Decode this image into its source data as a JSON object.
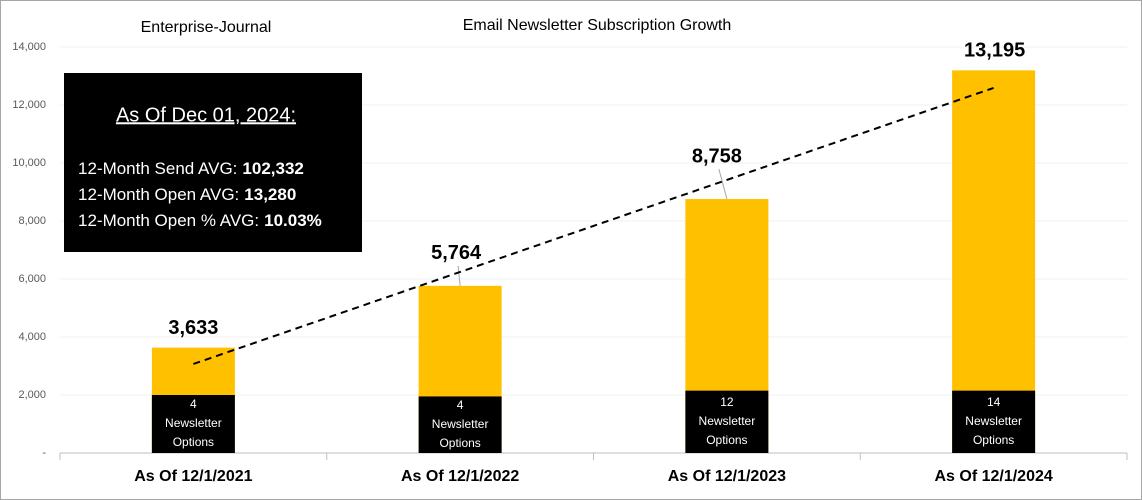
{
  "chart_data": {
    "type": "bar",
    "title": "Email Newsletter Subscription Growth",
    "subtitle": "Enterprise-Journal",
    "categories": [
      "As Of 12/1/2021",
      "As Of 12/1/2022",
      "As Of 12/1/2023",
      "As Of 12/1/2024"
    ],
    "values": [
      3633,
      5764,
      8758,
      13195
    ],
    "value_labels": [
      "3,633",
      "5,764",
      "8,758",
      "13,195"
    ],
    "color": "#ffc000",
    "inner_bars": {
      "values": [
        2000,
        1950,
        2150,
        2150
      ],
      "color": "#000000",
      "labels": [
        [
          "4",
          "Newsletter",
          "Options"
        ],
        [
          "4",
          "Newsletter",
          "Options"
        ],
        [
          "12",
          "Newsletter",
          "Options"
        ],
        [
          "14",
          "Newsletter",
          "Options"
        ]
      ]
    },
    "trendline": {
      "values": [
        3070,
        12590
      ],
      "color": "#000000"
    },
    "ylim": [
      0,
      14000
    ],
    "yticks": [
      {
        "value": 0,
        "label": "-"
      },
      {
        "value": 2000,
        "label": "2,000"
      },
      {
        "value": 4000,
        "label": "4,000"
      },
      {
        "value": 6000,
        "label": "6,000"
      },
      {
        "value": 8000,
        "label": "8,000"
      },
      {
        "value": 10000,
        "label": "10,000"
      },
      {
        "value": 12000,
        "label": "12,000"
      },
      {
        "value": 14000,
        "label": "14,000"
      }
    ],
    "grid": true,
    "annotation": {
      "heading": "As Of Dec 01, 2024:",
      "lines": [
        {
          "label": "12-Month Send AVG:",
          "value": "102,332"
        },
        {
          "label": "12-Month Open AVG:",
          "value": "13,280"
        },
        {
          "label": "12-Month Open % AVG:",
          "value": "10.03%"
        }
      ]
    }
  }
}
